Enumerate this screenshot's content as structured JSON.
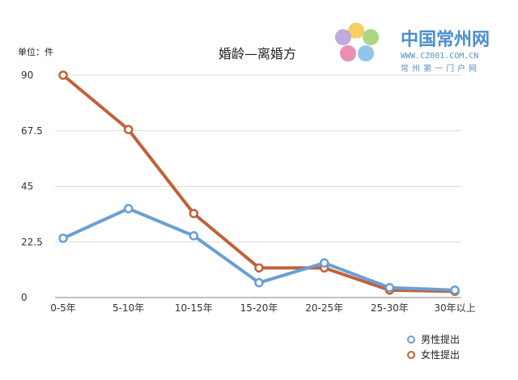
{
  "chart_data": {
    "type": "line",
    "title": "婚龄—离婚方",
    "unit_label": "单位：件",
    "categories": [
      "0-5年",
      "5-10年",
      "10-15年",
      "15-20年",
      "20-25年",
      "25-30年",
      "30年以上"
    ],
    "series": [
      {
        "name": "男性提出",
        "color": "#6a9fd4",
        "values": [
          24,
          36,
          25,
          6,
          14,
          4,
          3
        ]
      },
      {
        "name": "女性提出",
        "color": "#c0613a",
        "values": [
          90,
          68,
          34,
          12,
          12,
          3,
          2.5
        ]
      }
    ],
    "yticks": [
      "0",
      "22.5",
      "45",
      "67.5",
      "90"
    ],
    "ylim": [
      0,
      90
    ],
    "grid": true,
    "legend_position": "bottom-right"
  },
  "watermark": {
    "name": "中国常州网",
    "url": "WWW.CZ001.COM.CN",
    "slogan": "常州第一门户网"
  }
}
